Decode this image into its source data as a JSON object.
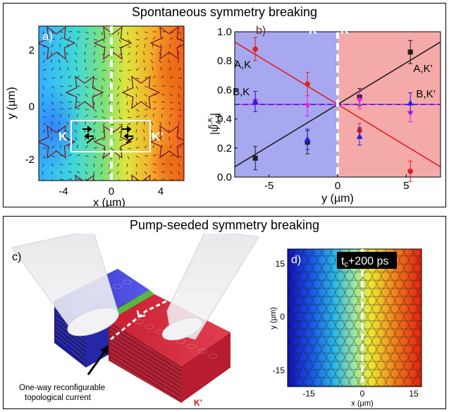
{
  "top_panel": {
    "title": "Spontaneous symmetry breaking",
    "panel_a": {
      "label": "a)",
      "xlabel": "x (µm)",
      "ylabel": "y (µm)",
      "xticks": [
        "-4",
        "0",
        "4"
      ],
      "yticks": [
        "2",
        "0",
        "-2"
      ],
      "region_left": "K",
      "region_right": "K’"
    },
    "panel_b": {
      "label": "b)",
      "ylabel": "|ψ",
      "ylabel_sub": "A,B",
      "ylabel_sup": "K,K’",
      "ylabel_close": "|",
      "region_left": "K",
      "region_right": "K’"
    }
  },
  "bottom_panel": {
    "title": "Pump-seeded symmetry breaking",
    "panel_c": {
      "label": "c)",
      "region_left": "K",
      "region_right": "K’",
      "annotation_line1": "One-way reconfigurable",
      "annotation_line2": "topological current"
    },
    "panel_d": {
      "label": "d)",
      "time_prefix": "t",
      "time_sub": "c",
      "time_suffix": "+200 ps",
      "xlabel": "x (µm)",
      "ylabel": "y (µm)",
      "xticks": [
        "-15",
        "0",
        "15"
      ],
      "yticks": [
        "15",
        "0",
        "-15"
      ]
    }
  },
  "chart_data": {
    "type": "scatter",
    "xlabel": "y (µm)",
    "xlim": [
      -7.5,
      7.5
    ],
    "ylim": [
      0.0,
      1.0
    ],
    "xticks": [
      "-5",
      "0",
      "5"
    ],
    "yticks": [
      "0.0",
      "0.2",
      "0.4",
      "0.6",
      "0.8",
      "1.0"
    ],
    "regions": [
      {
        "label": "K",
        "from": -7.5,
        "to": 0,
        "color": "#a8a8f0"
      },
      {
        "label": "K’",
        "from": 0,
        "to": 7.5,
        "color": "#f5aaaa"
      }
    ],
    "series": [
      {
        "name": "A,K",
        "color": "#e02020",
        "marker": "circle",
        "x": [
          -6.0,
          -2.2,
          1.6,
          5.3
        ],
        "y": [
          0.88,
          0.64,
          0.32,
          0.04
        ],
        "err": [
          0.08,
          0.08,
          0.05,
          0.07
        ],
        "fit": {
          "x": [
            -7.5,
            7.5
          ],
          "y": [
            0.93,
            0.07
          ]
        }
      },
      {
        "name": "A,K’",
        "color": "#202020",
        "marker": "square",
        "x": [
          -6.0,
          -2.2,
          1.6,
          5.3
        ],
        "y": [
          0.13,
          0.24,
          0.55,
          0.86
        ],
        "err": [
          0.08,
          0.08,
          0.06,
          0.08
        ],
        "fit": {
          "x": [
            -7.5,
            7.5
          ],
          "y": [
            0.07,
            0.93
          ]
        }
      },
      {
        "name": "B,K",
        "color": "#e020e0",
        "marker": "triangle-down",
        "x": [
          -6.0,
          -2.2,
          1.6,
          5.3
        ],
        "y": [
          0.52,
          0.49,
          0.53,
          0.44
        ],
        "err": [
          0.07,
          0.07,
          0.06,
          0.06
        ],
        "fit": {
          "x": [
            -7.5,
            7.5
          ],
          "y": [
            0.5,
            0.5
          ]
        }
      },
      {
        "name": "B,K’",
        "color": "#2020e0",
        "marker": "triangle-up",
        "x": [
          -6.0,
          -2.2,
          1.6,
          5.3
        ],
        "y": [
          0.52,
          0.26,
          0.28,
          0.51
        ],
        "err": [
          0.07,
          0.07,
          0.06,
          0.07
        ],
        "fit": {
          "x": [
            -7.5,
            7.5
          ],
          "y": [
            0.5,
            0.5
          ]
        }
      }
    ]
  }
}
